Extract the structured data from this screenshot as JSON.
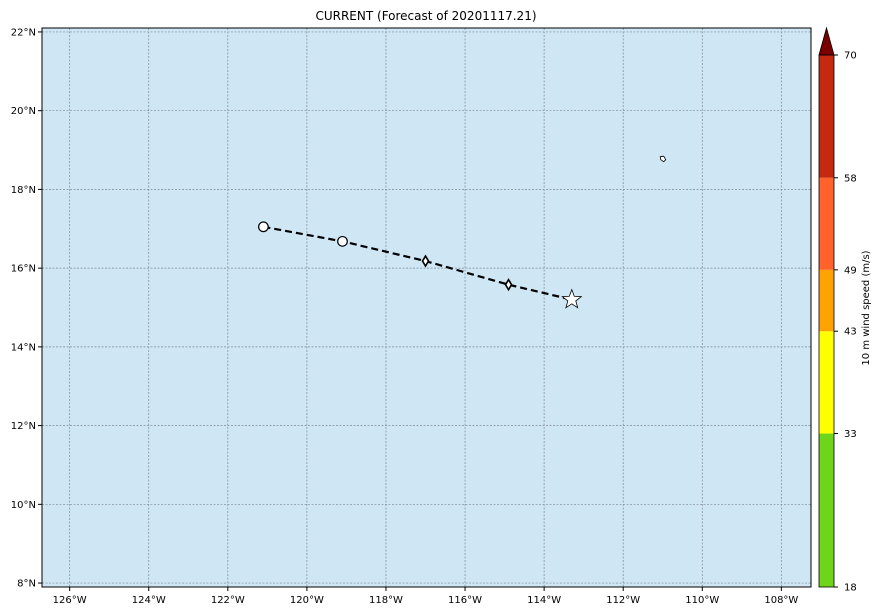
{
  "title": "CURRENT (Forecast of 20201117.21)",
  "map": {
    "ocean_color": "#cfe6f5",
    "lon_ticks": [
      {
        "value": -126,
        "label": "126°W"
      },
      {
        "value": -124,
        "label": "124°W"
      },
      {
        "value": -122,
        "label": "122°W"
      },
      {
        "value": -120,
        "label": "120°W"
      },
      {
        "value": -118,
        "label": "118°W"
      },
      {
        "value": -116,
        "label": "116°W"
      },
      {
        "value": -114,
        "label": "114°W"
      },
      {
        "value": -112,
        "label": "112°W"
      },
      {
        "value": -110,
        "label": "110°W"
      },
      {
        "value": -108,
        "label": "108°W"
      }
    ],
    "lat_ticks": [
      {
        "value": 8,
        "label": "8°N"
      },
      {
        "value": 10,
        "label": "10°N"
      },
      {
        "value": 12,
        "label": "12°N"
      },
      {
        "value": 14,
        "label": "14°N"
      },
      {
        "value": 16,
        "label": "16°N"
      },
      {
        "value": 18,
        "label": "18°N"
      },
      {
        "value": 20,
        "label": "20°N"
      },
      {
        "value": 22,
        "label": "22°N"
      }
    ],
    "lon_range": [
      -126.7,
      -107.25
    ],
    "lat_range": [
      7.9,
      22.1
    ],
    "grid": true
  },
  "track": {
    "points": [
      {
        "lon": -121.1,
        "lat": 17.05,
        "marker": "circle"
      },
      {
        "lon": -119.1,
        "lat": 16.68,
        "marker": "circle"
      },
      {
        "lon": -117.0,
        "lat": 16.18,
        "marker": "diamond"
      },
      {
        "lon": -114.9,
        "lat": 15.58,
        "marker": "diamond"
      },
      {
        "lon": -113.3,
        "lat": 15.2,
        "marker": "star"
      }
    ],
    "line_style": "dashed",
    "line_color": "#000000"
  },
  "island": {
    "lon": -111.0,
    "lat": 18.78
  },
  "colorbar": {
    "label": "10 m wind speed (m/s)",
    "ticks": [
      "18",
      "33",
      "43",
      "49",
      "58",
      "70"
    ],
    "segments": [
      {
        "from": 18,
        "to": 33,
        "color": "#6fd51a"
      },
      {
        "from": 33,
        "to": 43,
        "color": "#ffff00"
      },
      {
        "from": 43,
        "to": 49,
        "color": "#ffa305"
      },
      {
        "from": 49,
        "to": 58,
        "color": "#ff632b"
      },
      {
        "from": 58,
        "to": 70,
        "color": "#c42a0f"
      }
    ],
    "extend_color": "#7a0000"
  }
}
